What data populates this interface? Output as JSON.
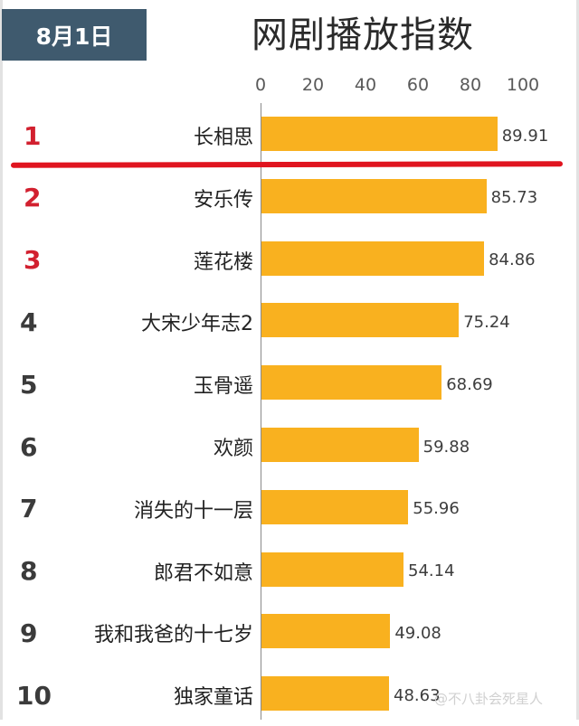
{
  "header": {
    "date": "8月1日",
    "title": "网剧播放指数"
  },
  "axis": {
    "ticks": [
      "0",
      "20",
      "40",
      "60",
      "80",
      "100"
    ]
  },
  "rows": [
    {
      "rank": "1",
      "name": "长相思",
      "value": "89.91"
    },
    {
      "rank": "2",
      "name": "安乐传",
      "value": "85.73"
    },
    {
      "rank": "3",
      "name": "莲花楼",
      "value": "84.86"
    },
    {
      "rank": "4",
      "name": "大宋少年志2",
      "value": "75.24"
    },
    {
      "rank": "5",
      "name": "玉骨遥",
      "value": "68.69"
    },
    {
      "rank": "6",
      "name": "欢颜",
      "value": "59.88"
    },
    {
      "rank": "7",
      "name": "消失的十一层",
      "value": "55.96"
    },
    {
      "rank": "8",
      "name": "郎君不如意",
      "value": "54.14"
    },
    {
      "rank": "9",
      "name": "我和我爸的十七岁",
      "value": "49.08"
    },
    {
      "rank": "10",
      "name": "独家童话",
      "value": "48.63"
    }
  ],
  "watermark": "@不八卦会死星人",
  "colors": {
    "bar": "#f9b11f",
    "top_rank": "#d2202f",
    "rank": "#3b3b3b",
    "badge": "#3f5a6e",
    "divider_line": "#e0141f"
  },
  "chart_data": {
    "type": "bar",
    "orientation": "horizontal",
    "title": "网剧播放指数",
    "subtitle": "8月1日",
    "categories": [
      "长相思",
      "安乐传",
      "莲花楼",
      "大宋少年志2",
      "玉骨遥",
      "欢颜",
      "消失的十一层",
      "郎君不如意",
      "我和我爸的十七岁",
      "独家童话"
    ],
    "values": [
      89.91,
      85.73,
      84.86,
      75.24,
      68.69,
      59.88,
      55.96,
      54.14,
      49.08,
      48.63
    ],
    "ranks": [
      1,
      2,
      3,
      4,
      5,
      6,
      7,
      8,
      9,
      10
    ],
    "xlabel": "",
    "ylabel": "",
    "xlim": [
      0,
      100
    ],
    "xticks": [
      0,
      20,
      40,
      60,
      80,
      100
    ],
    "axis_position": "top",
    "grid": false,
    "legend": null,
    "data_labels": true,
    "annotations": [
      "red line separating rank 1 from the rest"
    ]
  }
}
